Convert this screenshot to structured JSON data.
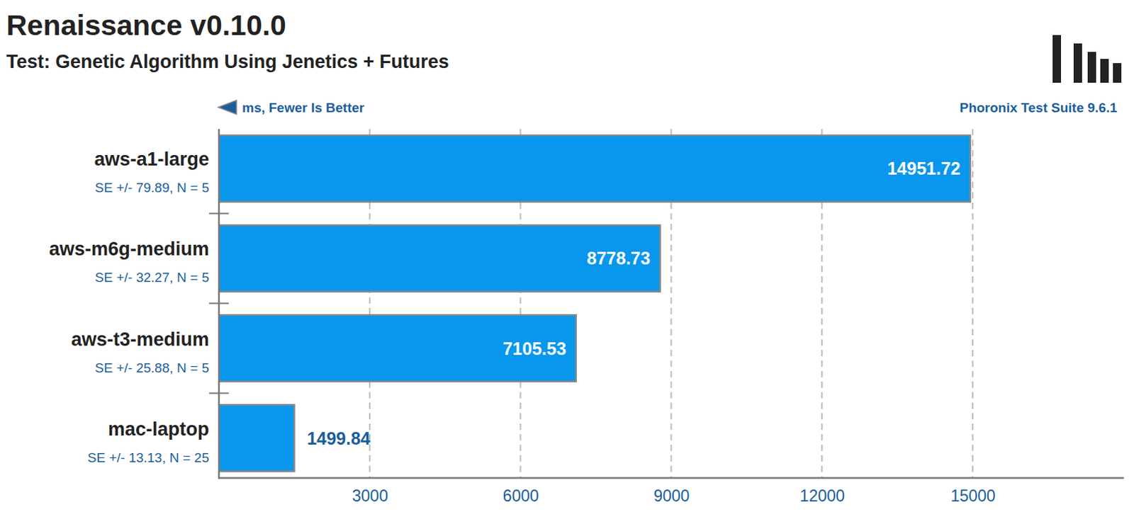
{
  "chart_data": {
    "type": "bar",
    "orientation": "horizontal",
    "title": "Renaissance v0.10.0",
    "subtitle": "Test: Genetic Algorithm Using Jenetics + Futures",
    "x_label": "ms, Fewer Is Better",
    "source": "Phoronix Test Suite 9.6.1",
    "categories": [
      "aws-a1-large",
      "aws-m6g-medium",
      "aws-t3-medium",
      "mac-laptop"
    ],
    "annotations": [
      "SE +/- 79.89, N = 5",
      "SE +/- 32.27, N = 5",
      "SE +/- 25.88, N = 5",
      "SE +/- 13.13, N = 25"
    ],
    "values": [
      14951.72,
      8778.73,
      7105.53,
      1499.84
    ],
    "color": "#0897ec",
    "xlim": [
      0,
      18000
    ],
    "xticks": [
      3000,
      6000,
      9000,
      12000,
      15000
    ],
    "grid": true,
    "data_labels": true
  }
}
